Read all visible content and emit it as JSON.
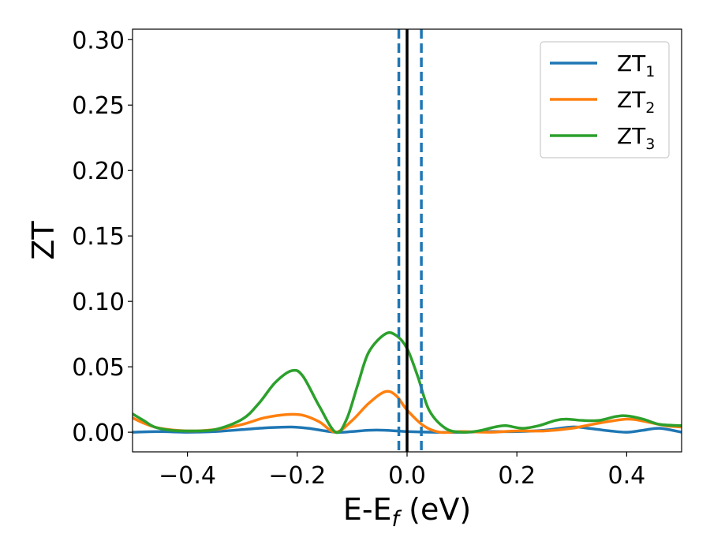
{
  "chart_data": {
    "type": "line",
    "ylabel": "ZT",
    "xlabel": {
      "main": "E-E",
      "sub": "f",
      "suffix": " (eV)"
    },
    "xlim": [
      -0.5,
      0.5
    ],
    "ylim": [
      -0.015,
      0.308
    ],
    "xticks": [
      -0.4,
      -0.2,
      0.0,
      0.2,
      0.4
    ],
    "xtick_labels": [
      "−0.4",
      "−0.2",
      "0.0",
      "0.2",
      "0.4"
    ],
    "yticks": [
      0.0,
      0.05,
      0.1,
      0.15,
      0.2,
      0.25,
      0.3
    ],
    "ytick_labels": [
      "0.00",
      "0.05",
      "0.10",
      "0.15",
      "0.20",
      "0.25",
      "0.30"
    ],
    "grid": false,
    "legend_position": "top-right",
    "vertical_lines": [
      {
        "x": -0.015,
        "style": "dashed",
        "color": "#1f77b4"
      },
      {
        "x": 0.0,
        "style": "solid",
        "color": "#000000"
      },
      {
        "x": 0.026,
        "style": "dashed",
        "color": "#1f77b4"
      }
    ],
    "series": [
      {
        "name": "ZT",
        "sub": "1",
        "color": "#1f77b4",
        "points": [
          [
            -0.5,
            0.0
          ],
          [
            -0.45,
            0.0005
          ],
          [
            -0.4,
            0.0
          ],
          [
            -0.35,
            0.0005
          ],
          [
            -0.3,
            0.002
          ],
          [
            -0.25,
            0.0035
          ],
          [
            -0.21,
            0.004
          ],
          [
            -0.18,
            0.003
          ],
          [
            -0.13,
            0.0
          ],
          [
            -0.1,
            0.0005
          ],
          [
            -0.07,
            0.0015
          ],
          [
            -0.04,
            0.0015
          ],
          [
            0.0,
            0.0005
          ],
          [
            0.05,
            0.0
          ],
          [
            0.1,
            0.0
          ],
          [
            0.15,
            0.0005
          ],
          [
            0.2,
            0.0005
          ],
          [
            0.25,
            0.0015
          ],
          [
            0.3,
            0.004
          ],
          [
            0.33,
            0.003
          ],
          [
            0.37,
            0.001
          ],
          [
            0.4,
            0.0
          ],
          [
            0.43,
            0.0015
          ],
          [
            0.46,
            0.003
          ],
          [
            0.5,
            0.0
          ]
        ]
      },
      {
        "name": "ZT",
        "sub": "2",
        "color": "#ff7f0e",
        "points": [
          [
            -0.5,
            0.011
          ],
          [
            -0.48,
            0.007
          ],
          [
            -0.45,
            0.003
          ],
          [
            -0.4,
            0.001
          ],
          [
            -0.35,
            0.002
          ],
          [
            -0.3,
            0.006
          ],
          [
            -0.26,
            0.011
          ],
          [
            -0.22,
            0.0135
          ],
          [
            -0.19,
            0.013
          ],
          [
            -0.16,
            0.008
          ],
          [
            -0.13,
            0.0
          ],
          [
            -0.1,
            0.009
          ],
          [
            -0.07,
            0.022
          ],
          [
            -0.04,
            0.031
          ],
          [
            -0.02,
            0.028
          ],
          [
            0.0,
            0.017
          ],
          [
            0.03,
            0.005
          ],
          [
            0.06,
            0.0
          ],
          [
            0.1,
            0.0005
          ],
          [
            0.15,
            0.0
          ],
          [
            0.2,
            0.001
          ],
          [
            0.25,
            0.001
          ],
          [
            0.3,
            0.003
          ],
          [
            0.35,
            0.007
          ],
          [
            0.4,
            0.01
          ],
          [
            0.43,
            0.0085
          ],
          [
            0.47,
            0.005
          ],
          [
            0.5,
            0.004
          ]
        ]
      },
      {
        "name": "ZT",
        "sub": "3",
        "color": "#2ca02c",
        "points": [
          [
            -0.5,
            0.014
          ],
          [
            -0.48,
            0.009
          ],
          [
            -0.46,
            0.004
          ],
          [
            -0.43,
            0.0015
          ],
          [
            -0.4,
            0.001
          ],
          [
            -0.35,
            0.002
          ],
          [
            -0.3,
            0.01
          ],
          [
            -0.27,
            0.022
          ],
          [
            -0.24,
            0.038
          ],
          [
            -0.21,
            0.047
          ],
          [
            -0.19,
            0.043
          ],
          [
            -0.16,
            0.02
          ],
          [
            -0.13,
            0.0
          ],
          [
            -0.11,
            0.01
          ],
          [
            -0.09,
            0.036
          ],
          [
            -0.07,
            0.061
          ],
          [
            -0.04,
            0.075
          ],
          [
            -0.02,
            0.074
          ],
          [
            0.0,
            0.064
          ],
          [
            0.02,
            0.042
          ],
          [
            0.04,
            0.017
          ],
          [
            0.07,
            0.003
          ],
          [
            0.1,
            0.0
          ],
          [
            0.13,
            0.001
          ],
          [
            0.16,
            0.004
          ],
          [
            0.18,
            0.005
          ],
          [
            0.21,
            0.003
          ],
          [
            0.24,
            0.005
          ],
          [
            0.27,
            0.009
          ],
          [
            0.29,
            0.01
          ],
          [
            0.32,
            0.009
          ],
          [
            0.35,
            0.009
          ],
          [
            0.38,
            0.012
          ],
          [
            0.4,
            0.0125
          ],
          [
            0.43,
            0.01
          ],
          [
            0.46,
            0.006
          ],
          [
            0.5,
            0.005
          ]
        ]
      }
    ]
  }
}
